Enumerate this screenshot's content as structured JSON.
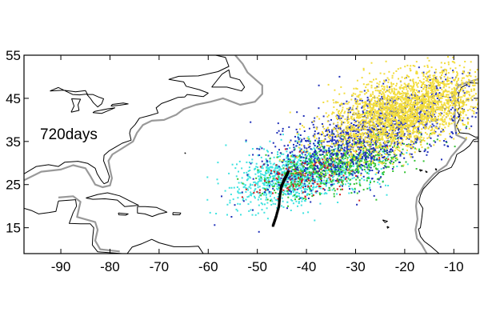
{
  "figure": {
    "panel_label": "720days",
    "x_tick_labels": [
      "-90",
      "-80",
      "-70",
      "-60",
      "-50",
      "-40",
      "-30",
      "-20",
      "-10"
    ],
    "y_tick_labels": [
      "15",
      "25",
      "35",
      "45",
      "55"
    ]
  },
  "map_data": {
    "type": "scatter",
    "projection": "equirectangular",
    "lon_range": [
      -97.5,
      -5
    ],
    "lat_range": [
      9,
      55
    ],
    "tick_lon": [
      -90,
      -80,
      -70,
      -60,
      -50,
      -40,
      -30,
      -20,
      -10
    ],
    "tick_lat": [
      15,
      25,
      35,
      45,
      55
    ],
    "colors": {
      "coastline": "#000000",
      "shelf_contour": "#999999",
      "release_line": "#000000",
      "yellow": "#f2dc3c",
      "blue": "#1f2fb8",
      "green": "#33c233",
      "cyan": "#3fe3e0",
      "red": "#d62020"
    },
    "release_line": [
      [
        -46.8,
        15.5
      ],
      [
        -46.2,
        17.5
      ],
      [
        -45.6,
        20.0
      ],
      [
        -45.4,
        22.5
      ],
      [
        -45.1,
        24.5
      ],
      [
        -44.6,
        26.0
      ],
      [
        -44.1,
        27.0
      ],
      [
        -43.7,
        28.0
      ]
    ],
    "particle_clouds": [
      {
        "color": "cyan",
        "count": 900,
        "center": [
          -43.5,
          27.0
        ],
        "spread": [
          5.5,
          3.2
        ],
        "tilt": 0.25
      },
      {
        "color": "cyan",
        "count": 250,
        "center": [
          -35.0,
          27.5
        ],
        "spread": [
          6.0,
          2.5
        ],
        "tilt": 0.1
      },
      {
        "color": "red",
        "count": 180,
        "center": [
          -40.0,
          27.5
        ],
        "spread": [
          5.5,
          2.5
        ],
        "tilt": 0.2
      },
      {
        "color": "green",
        "count": 650,
        "center": [
          -33.0,
          30.0
        ],
        "spread": [
          7.5,
          3.0
        ],
        "tilt": 0.25
      },
      {
        "color": "blue",
        "count": 1300,
        "center": [
          -27.0,
          37.0
        ],
        "spread": [
          10.0,
          4.6
        ],
        "tilt": 0.4
      },
      {
        "color": "yellow",
        "count": 2600,
        "center": [
          -20.0,
          42.0
        ],
        "spread": [
          8.0,
          4.2
        ],
        "tilt": 0.35
      }
    ],
    "land_outlines": [
      [
        [
          -97.5,
          27.5
        ],
        [
          -95.0,
          29.2
        ],
        [
          -92.5,
          29.6
        ],
        [
          -90.5,
          29.2
        ],
        [
          -89.2,
          30.2
        ],
        [
          -86.5,
          30.4
        ],
        [
          -84.5,
          29.9
        ],
        [
          -83.0,
          28.8
        ],
        [
          -82.6,
          27.5
        ],
        [
          -81.8,
          26.0
        ],
        [
          -81.2,
          25.2
        ],
        [
          -80.4,
          25.6
        ],
        [
          -80.1,
          26.8
        ],
        [
          -80.6,
          28.5
        ],
        [
          -81.3,
          30.5
        ],
        [
          -81.2,
          31.8
        ],
        [
          -80.2,
          32.8
        ],
        [
          -78.7,
          33.8
        ],
        [
          -77.5,
          34.6
        ],
        [
          -75.7,
          35.3
        ],
        [
          -76.0,
          36.9
        ],
        [
          -75.8,
          37.8
        ],
        [
          -74.9,
          38.9
        ],
        [
          -74.0,
          40.4
        ],
        [
          -72.0,
          41.0
        ],
        [
          -70.2,
          41.6
        ],
        [
          -70.6,
          42.8
        ],
        [
          -69.5,
          43.8
        ],
        [
          -67.8,
          44.5
        ],
        [
          -66.2,
          45.2
        ],
        [
          -64.8,
          45.3
        ],
        [
          -64.3,
          45.9
        ],
        [
          -63.0,
          45.7
        ],
        [
          -61.0,
          45.4
        ],
        [
          -60.0,
          46.2
        ],
        [
          -61.8,
          47.0
        ],
        [
          -64.5,
          47.8
        ],
        [
          -65.0,
          48.8
        ],
        [
          -68.0,
          49.4
        ],
        [
          -66.0,
          50.1
        ],
        [
          -62.0,
          50.2
        ],
        [
          -58.0,
          51.2
        ],
        [
          -55.8,
          52.4
        ],
        [
          -56.5,
          54.5
        ],
        [
          -58.5,
          55.0
        ]
      ],
      [
        [
          -59.3,
          47.6
        ],
        [
          -56.2,
          47.6
        ],
        [
          -53.2,
          46.7
        ],
        [
          -52.6,
          47.6
        ],
        [
          -53.6,
          49.3
        ],
        [
          -55.5,
          49.9
        ],
        [
          -55.8,
          51.6
        ],
        [
          -57.2,
          50.6
        ],
        [
          -58.6,
          48.6
        ],
        [
          -59.3,
          47.6
        ]
      ],
      [
        [
          -92.2,
          46.7
        ],
        [
          -89.5,
          46.9
        ],
        [
          -87.0,
          46.5
        ],
        [
          -85.0,
          46.8
        ],
        [
          -84.6,
          46.0
        ],
        [
          -86.2,
          45.8
        ],
        [
          -87.6,
          45.9
        ],
        [
          -90.5,
          47.5
        ],
        [
          -92.2,
          46.7
        ]
      ],
      [
        [
          -87.9,
          41.8
        ],
        [
          -87.3,
          43.2
        ],
        [
          -87.8,
          44.9
        ],
        [
          -86.0,
          44.8
        ],
        [
          -86.5,
          43.5
        ],
        [
          -86.3,
          42.2
        ],
        [
          -87.9,
          41.8
        ]
      ],
      [
        [
          -84.7,
          45.9
        ],
        [
          -83.5,
          45.9
        ],
        [
          -82.3,
          45.3
        ],
        [
          -81.3,
          44.9
        ],
        [
          -81.7,
          43.7
        ],
        [
          -82.5,
          43.0
        ],
        [
          -83.4,
          44.0
        ],
        [
          -84.0,
          45.0
        ],
        [
          -84.7,
          45.9
        ]
      ],
      [
        [
          -83.5,
          41.7
        ],
        [
          -81.7,
          41.5
        ],
        [
          -79.0,
          42.8
        ],
        [
          -80.3,
          42.6
        ],
        [
          -83.0,
          42.0
        ],
        [
          -83.5,
          41.7
        ]
      ],
      [
        [
          -79.8,
          43.2
        ],
        [
          -78.0,
          43.4
        ],
        [
          -76.3,
          43.7
        ],
        [
          -77.3,
          43.9
        ],
        [
          -79.5,
          43.6
        ],
        [
          -79.8,
          43.2
        ]
      ],
      [
        [
          -84.9,
          21.9
        ],
        [
          -82.5,
          22.7
        ],
        [
          -80.5,
          23.1
        ],
        [
          -78.0,
          22.4
        ],
        [
          -75.6,
          21.0
        ],
        [
          -74.2,
          20.2
        ],
        [
          -77.0,
          19.9
        ],
        [
          -78.5,
          21.4
        ],
        [
          -81.0,
          21.7
        ],
        [
          -83.5,
          21.6
        ],
        [
          -84.9,
          21.9
        ]
      ],
      [
        [
          -74.4,
          19.9
        ],
        [
          -72.8,
          19.9
        ],
        [
          -70.5,
          19.7
        ],
        [
          -68.4,
          18.6
        ],
        [
          -70.0,
          18.2
        ],
        [
          -71.4,
          17.6
        ],
        [
          -72.9,
          18.2
        ],
        [
          -74.4,
          18.4
        ],
        [
          -74.4,
          19.9
        ]
      ],
      [
        [
          -78.3,
          18.4
        ],
        [
          -76.3,
          18.2
        ],
        [
          -76.8,
          17.9
        ],
        [
          -78.2,
          18.0
        ],
        [
          -78.3,
          18.4
        ]
      ],
      [
        [
          -67.2,
          18.5
        ],
        [
          -65.6,
          18.4
        ],
        [
          -65.8,
          18.0
        ],
        [
          -67.2,
          18.0
        ],
        [
          -67.2,
          18.5
        ]
      ],
      [
        [
          -90.5,
          21.2
        ],
        [
          -87.0,
          21.5
        ],
        [
          -86.8,
          20.0
        ],
        [
          -87.5,
          18.5
        ],
        [
          -88.3,
          16.0
        ],
        [
          -86.0,
          15.9
        ],
        [
          -84.0,
          15.9
        ],
        [
          -83.3,
          15.0
        ],
        [
          -83.5,
          13.0
        ],
        [
          -83.6,
          11.0
        ],
        [
          -82.5,
          9.4
        ],
        [
          -80.0,
          9.2
        ],
        [
          -77.5,
          9.0
        ]
      ],
      [
        [
          -97.5,
          19.5
        ],
        [
          -96.0,
          19.0
        ],
        [
          -94.5,
          18.2
        ],
        [
          -92.5,
          18.5
        ],
        [
          -91.0,
          18.8
        ],
        [
          -90.5,
          21.2
        ]
      ],
      [
        [
          -76.5,
          9.0
        ],
        [
          -75.5,
          10.5
        ],
        [
          -73.5,
          11.3
        ],
        [
          -71.5,
          12.3
        ],
        [
          -70.0,
          11.5
        ],
        [
          -67.0,
          10.6
        ],
        [
          -64.0,
          10.6
        ],
        [
          -62.0,
          10.7
        ],
        [
          -61.0,
          9.0
        ]
      ],
      [
        [
          -5.0,
          48.5
        ],
        [
          -6.8,
          48.6
        ],
        [
          -8.5,
          47.5
        ],
        [
          -9.0,
          46.0
        ],
        [
          -9.2,
          44.5
        ],
        [
          -8.8,
          43.0
        ],
        [
          -9.3,
          42.0
        ],
        [
          -8.7,
          40.5
        ],
        [
          -9.5,
          38.7
        ],
        [
          -8.8,
          37.0
        ],
        [
          -7.0,
          36.8
        ],
        [
          -5.6,
          36.0
        ],
        [
          -5.0,
          36.0
        ]
      ],
      [
        [
          -5.0,
          35.7
        ],
        [
          -6.0,
          35.4
        ],
        [
          -6.8,
          34.0
        ],
        [
          -8.0,
          32.9
        ],
        [
          -9.4,
          32.0
        ],
        [
          -9.8,
          30.5
        ],
        [
          -10.5,
          29.0
        ],
        [
          -13.0,
          27.8
        ],
        [
          -14.6,
          26.0
        ],
        [
          -16.2,
          24.0
        ],
        [
          -16.8,
          22.5
        ],
        [
          -17.1,
          21.0
        ],
        [
          -16.3,
          19.5
        ],
        [
          -16.5,
          17.5
        ],
        [
          -16.8,
          15.0
        ],
        [
          -17.2,
          14.7
        ],
        [
          -16.8,
          13.0
        ],
        [
          -16.0,
          11.8
        ],
        [
          -14.8,
          10.8
        ],
        [
          -13.5,
          9.5
        ],
        [
          -13.0,
          9.0
        ]
      ],
      [
        [
          -15.8,
          28.2
        ],
        [
          -15.4,
          27.9
        ],
        [
          -15.6,
          27.8
        ],
        [
          -15.8,
          28.2
        ]
      ],
      [
        [
          -17.0,
          28.5
        ],
        [
          -16.4,
          28.3
        ],
        [
          -16.8,
          28.1
        ],
        [
          -17.0,
          28.5
        ]
      ],
      [
        [
          -13.8,
          28.7
        ],
        [
          -13.5,
          28.6
        ],
        [
          -13.6,
          28.3
        ],
        [
          -13.8,
          28.7
        ]
      ],
      [
        [
          -17.2,
          32.8
        ],
        [
          -16.7,
          32.7
        ],
        [
          -16.9,
          32.6
        ],
        [
          -17.2,
          32.8
        ]
      ],
      [
        [
          -25.8,
          37.9
        ],
        [
          -25.1,
          37.8
        ],
        [
          -25.5,
          37.7
        ],
        [
          -25.8,
          37.9
        ]
      ],
      [
        [
          -28.7,
          38.6
        ],
        [
          -28.0,
          38.4
        ],
        [
          -28.5,
          38.4
        ],
        [
          -28.7,
          38.6
        ]
      ],
      [
        [
          -24.5,
          16.8
        ],
        [
          -23.5,
          16.5
        ],
        [
          -24.0,
          16.2
        ],
        [
          -24.5,
          16.8
        ]
      ],
      [
        [
          -23.6,
          15.3
        ],
        [
          -23.2,
          15.1
        ],
        [
          -23.5,
          14.9
        ],
        [
          -23.6,
          15.3
        ]
      ],
      [
        [
          -64.8,
          32.4
        ],
        [
          -64.6,
          32.3
        ],
        [
          -64.7,
          32.2
        ],
        [
          -64.8,
          32.4
        ]
      ]
    ],
    "shelf_outlines": [
      [
        [
          -97.5,
          26.0
        ],
        [
          -94.0,
          28.0
        ],
        [
          -90.0,
          28.5
        ],
        [
          -87.5,
          29.5
        ],
        [
          -85.0,
          28.8
        ],
        [
          -84.0,
          27.0
        ],
        [
          -83.0,
          25.0
        ],
        [
          -81.5,
          24.4
        ],
        [
          -80.0,
          24.8
        ],
        [
          -79.6,
          26.5
        ],
        [
          -80.0,
          28.5
        ],
        [
          -80.3,
          30.5
        ],
        [
          -79.5,
          32.0
        ],
        [
          -77.8,
          33.2
        ],
        [
          -75.3,
          35.0
        ],
        [
          -74.5,
          37.0
        ],
        [
          -73.3,
          38.8
        ],
        [
          -71.5,
          39.8
        ],
        [
          -69.0,
          40.0
        ],
        [
          -66.5,
          41.2
        ],
        [
          -65.0,
          42.5
        ],
        [
          -62.5,
          43.5
        ],
        [
          -59.5,
          44.2
        ],
        [
          -57.0,
          45.0
        ],
        [
          -53.5,
          43.5
        ],
        [
          -50.5,
          44.2
        ],
        [
          -49.0,
          46.0
        ],
        [
          -49.0,
          48.0
        ],
        [
          -50.5,
          49.5
        ],
        [
          -52.0,
          51.0
        ],
        [
          -53.0,
          53.0
        ],
        [
          -54.5,
          55.0
        ]
      ],
      [
        [
          -90.5,
          22.0
        ],
        [
          -87.5,
          22.3
        ],
        [
          -86.0,
          21.0
        ],
        [
          -86.7,
          17.5
        ],
        [
          -83.0,
          16.3
        ],
        [
          -82.5,
          14.5
        ],
        [
          -83.0,
          12.0
        ],
        [
          -82.0,
          10.0
        ],
        [
          -78.0,
          9.5
        ]
      ],
      [
        [
          -5.0,
          49.5
        ],
        [
          -9.0,
          48.0
        ],
        [
          -10.0,
          46.0
        ],
        [
          -9.7,
          43.5
        ],
        [
          -9.8,
          42.0
        ],
        [
          -9.8,
          39.0
        ],
        [
          -9.5,
          36.5
        ],
        [
          -7.5,
          35.5
        ],
        [
          -9.0,
          33.5
        ],
        [
          -10.5,
          31.5
        ],
        [
          -11.5,
          29.5
        ],
        [
          -14.0,
          27.5
        ],
        [
          -16.0,
          25.0
        ],
        [
          -17.5,
          22.0
        ],
        [
          -17.7,
          20.0
        ],
        [
          -17.4,
          17.0
        ],
        [
          -17.8,
          14.5
        ],
        [
          -17.5,
          12.5
        ],
        [
          -16.5,
          11.0
        ],
        [
          -15.5,
          9.0
        ]
      ]
    ]
  }
}
